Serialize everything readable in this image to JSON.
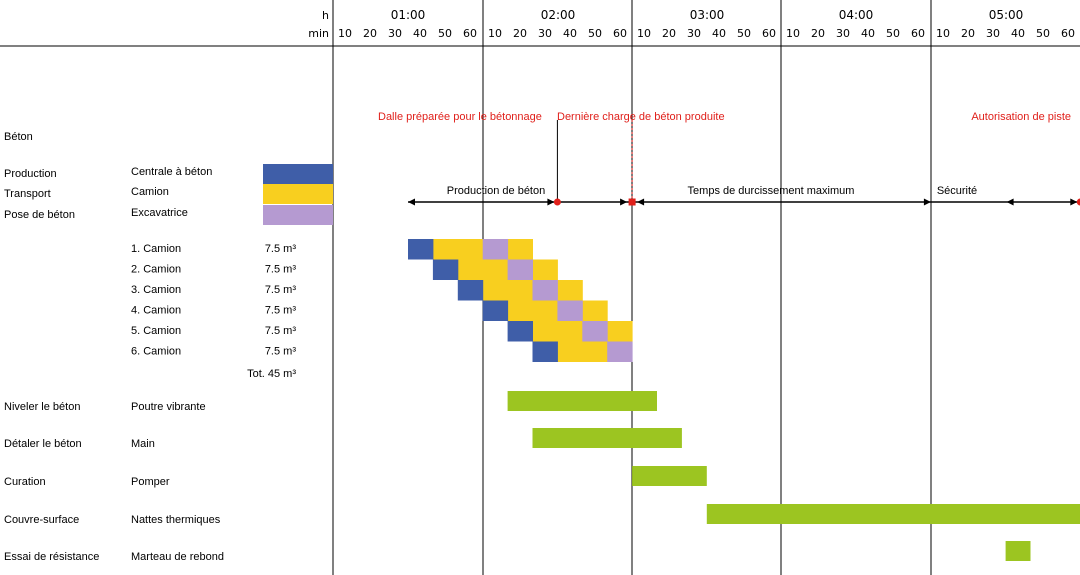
{
  "header": {
    "h_label": "h",
    "min_label": "min",
    "hours": [
      "01:00",
      "02:00",
      "03:00",
      "04:00",
      "05:00"
    ],
    "minute_ticks": [
      "10",
      "20",
      "30",
      "40",
      "50",
      "60"
    ]
  },
  "colors": {
    "production": "#3f5ea8",
    "transport": "#f8cf1f",
    "pose": "#b59ad1",
    "task": "#9cc521",
    "event": "#e0201b"
  },
  "section_title": "Béton",
  "legend": [
    {
      "phase": "Production",
      "equipment": "Centrale à béton",
      "color_key": "production"
    },
    {
      "phase": "Transport",
      "equipment": "Camion",
      "color_key": "transport"
    },
    {
      "phase": "Pose de béton",
      "equipment": "Excavatrice",
      "color_key": "pose"
    }
  ],
  "chart_data": {
    "type": "gantt",
    "x_unit": "min",
    "x_range": [
      0,
      300
    ],
    "events": [
      {
        "label": "Dalle préparée pour le bétonnage",
        "t": 60
      },
      {
        "label": "Dernière charge de béton produite",
        "t": 90
      },
      {
        "label": "Autorisation de piste",
        "t": 270
      }
    ],
    "phases": [
      {
        "label": "Production de béton",
        "start": 0,
        "end": 60
      },
      {
        "label": "Temps de durcissement maximum",
        "start": 90,
        "end": 210
      },
      {
        "label": "Sécurité",
        "start": 240,
        "end": 270
      }
    ],
    "trucks": [
      {
        "label": "1. Camion",
        "volume": "7.5 m³",
        "production": [
          0,
          10
        ],
        "transport": [
          [
            10,
            30
          ],
          [
            40,
            50
          ]
        ],
        "pose": [
          30,
          40
        ]
      },
      {
        "label": "2. Camion",
        "volume": "7.5 m³",
        "production": [
          10,
          20
        ],
        "transport": [
          [
            20,
            40
          ],
          [
            50,
            60
          ]
        ],
        "pose": [
          40,
          50
        ]
      },
      {
        "label": "3. Camion",
        "volume": "7.5 m³",
        "production": [
          20,
          30
        ],
        "transport": [
          [
            30,
            50
          ],
          [
            60,
            70
          ]
        ],
        "pose": [
          50,
          60
        ]
      },
      {
        "label": "4. Camion",
        "volume": "7.5 m³",
        "production": [
          30,
          40
        ],
        "transport": [
          [
            40,
            60
          ],
          [
            70,
            80
          ]
        ],
        "pose": [
          60,
          70
        ]
      },
      {
        "label": "5. Camion",
        "volume": "7.5 m³",
        "production": [
          40,
          50
        ],
        "transport": [
          [
            50,
            70
          ],
          [
            80,
            90
          ]
        ],
        "pose": [
          70,
          80
        ]
      },
      {
        "label": "6. Camion",
        "volume": "7.5 m³",
        "production": [
          50,
          60
        ],
        "transport": [
          [
            60,
            80
          ]
        ],
        "pose": [
          80,
          90
        ]
      }
    ],
    "total": "Tot. 45 m³",
    "tasks": [
      {
        "label": "Niveler le béton",
        "equipment": "Poutre vibrante",
        "start": 40,
        "end": 100
      },
      {
        "label": "Détaler le béton",
        "equipment": "Main",
        "start": 50,
        "end": 110
      },
      {
        "label": "Curation",
        "equipment": "Pomper",
        "start": 90,
        "end": 120
      },
      {
        "label": "Couvre-surface",
        "equipment": "Nattes thermiques",
        "start": 120,
        "end": 270
      },
      {
        "label": "Essai de résistance",
        "equipment": "Marteau de rebond",
        "start": 240,
        "end": 250
      }
    ]
  }
}
